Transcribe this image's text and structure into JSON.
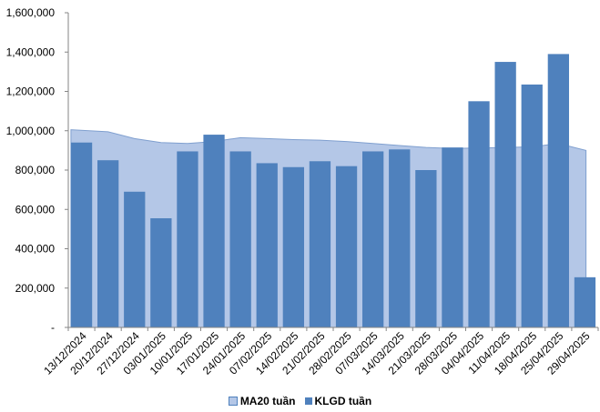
{
  "chart_data": {
    "type": "bar",
    "categories": [
      "13/12/2024",
      "20/12/2024",
      "27/12/2024",
      "03/01/2025",
      "10/01/2025",
      "17/01/2025",
      "24/01/2025",
      "07/02/2025",
      "14/02/2025",
      "21/02/2025",
      "28/02/2025",
      "07/03/2025",
      "14/03/2025",
      "21/03/2025",
      "28/03/2025",
      "04/04/2025",
      "11/04/2025",
      "18/04/2025",
      "25/04/2025",
      "29/04/2025"
    ],
    "series": [
      {
        "name": "MA20 tuần",
        "kind": "area",
        "color": "#b4c7e7",
        "values": [
          1005000,
          995000,
          960000,
          940000,
          935000,
          945000,
          965000,
          960000,
          955000,
          952000,
          945000,
          935000,
          925000,
          915000,
          910000,
          912000,
          915000,
          918000,
          935000,
          900000
        ]
      },
      {
        "name": "KLGD tuần",
        "kind": "bar",
        "color": "#4f81bd",
        "values": [
          940000,
          850000,
          690000,
          555000,
          895000,
          980000,
          895000,
          835000,
          815000,
          845000,
          820000,
          895000,
          905000,
          800000,
          915000,
          1150000,
          1350000,
          1235000,
          1390000,
          255000
        ]
      }
    ],
    "yticks": [
      "-",
      "200,000",
      "400,000",
      "600,000",
      "800,000",
      "1,000,000",
      "1,200,000",
      "1,400,000",
      "1,600,000"
    ],
    "ylim": [
      0,
      1600000
    ],
    "grid": false,
    "legend_position": "bottom"
  }
}
